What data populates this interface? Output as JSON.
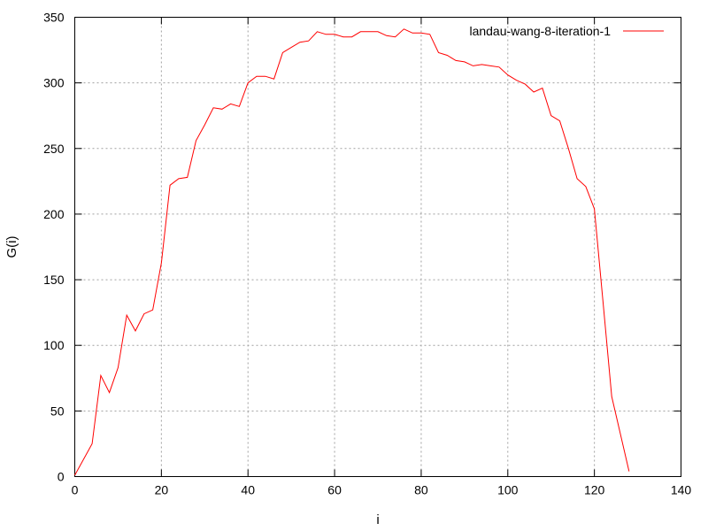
{
  "chart_data": {
    "type": "line",
    "xlabel": "i",
    "ylabel": "G(i)",
    "xlim": [
      0,
      140
    ],
    "ylim": [
      0,
      350
    ],
    "xticks": [
      0,
      20,
      40,
      60,
      80,
      100,
      120,
      140
    ],
    "yticks": [
      0,
      50,
      100,
      150,
      200,
      250,
      300,
      350
    ],
    "grid": true,
    "legend_position": "top-right",
    "series": [
      {
        "name": "landau-wang-8-iteration-1",
        "color": "#ff0000",
        "x": [
          0,
          4,
          6,
          8,
          10,
          12,
          14,
          16,
          18,
          20,
          22,
          24,
          26,
          28,
          30,
          32,
          34,
          36,
          38,
          40,
          42,
          44,
          46,
          48,
          50,
          52,
          54,
          56,
          58,
          60,
          62,
          64,
          66,
          68,
          70,
          72,
          74,
          76,
          78,
          80,
          82,
          84,
          86,
          88,
          90,
          92,
          94,
          96,
          98,
          100,
          102,
          104,
          106,
          108,
          110,
          112,
          114,
          116,
          118,
          120,
          122,
          124,
          128
        ],
        "y": [
          1,
          25,
          77,
          64,
          83,
          123,
          111,
          124,
          127,
          163,
          222,
          227,
          228,
          256,
          268,
          281,
          280,
          284,
          282,
          300,
          305,
          305,
          303,
          323,
          327,
          331,
          332,
          339,
          337,
          337,
          335,
          335,
          339,
          339,
          339,
          336,
          335,
          341,
          338,
          338,
          337,
          323,
          321,
          317,
          316,
          313,
          314,
          313,
          312,
          306,
          302,
          299,
          293,
          296,
          275,
          271,
          250,
          227,
          221,
          204,
          133,
          61,
          4
        ]
      }
    ]
  }
}
